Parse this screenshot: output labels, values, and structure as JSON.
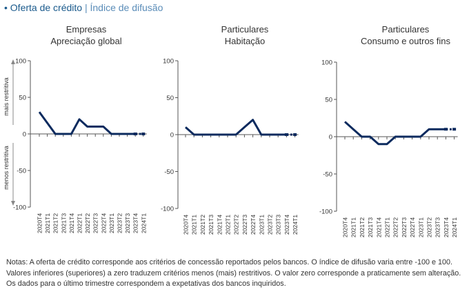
{
  "header": {
    "bullet": "•",
    "title": "Oferta de crédito",
    "separator": "|",
    "subtitle": "Índice de difusão"
  },
  "colors": {
    "header": "#1a5a8c",
    "series": "#0b2a5e",
    "axis": "#555555",
    "text": "#333333"
  },
  "y_axis_labels": {
    "upper": "mais restritiva",
    "lower": "menos restritiva"
  },
  "chart_data": [
    {
      "type": "line",
      "title": "Empresas",
      "subtitle": "Apreciação global",
      "ylim": [
        -100,
        100
      ],
      "yticks": [
        100,
        50,
        0,
        -50,
        -100
      ],
      "x": [
        "2020T4",
        "2021T1",
        "2021T2",
        "2021T3",
        "2021T4",
        "2022T1",
        "2022T2",
        "2022T3",
        "2022T4",
        "2023T1",
        "2023T2",
        "2023T3",
        "2023T4",
        "2024T1"
      ],
      "series": [
        {
          "values": [
            30,
            15,
            0,
            0,
            0,
            20,
            10,
            10,
            10,
            0,
            0,
            0,
            0,
            0
          ],
          "expected_from_index": 12
        }
      ]
    },
    {
      "type": "line",
      "title": "Particulares",
      "subtitle": "Habitação",
      "ylim": [
        -100,
        100
      ],
      "yticks": [
        100,
        50,
        0,
        -50,
        -100
      ],
      "x": [
        "2020T4",
        "2021T1",
        "2021T2",
        "2021T3",
        "2021T4",
        "2022T1",
        "2022T2",
        "2022T3",
        "2022T4",
        "2023T1",
        "2023T2",
        "2023T3",
        "2023T4",
        "2024T1"
      ],
      "series": [
        {
          "values": [
            10,
            0,
            0,
            0,
            0,
            0,
            0,
            10,
            20,
            0,
            0,
            0,
            0,
            0
          ],
          "expected_from_index": 12
        }
      ]
    },
    {
      "type": "line",
      "title": "Particulares",
      "subtitle": "Consumo e outros fins",
      "ylim": [
        -100,
        100
      ],
      "yticks": [
        100,
        50,
        0,
        -50,
        -100
      ],
      "x": [
        "2020T4",
        "2021T1",
        "2021T2",
        "2021T3",
        "2021T4",
        "2022T1",
        "2022T2",
        "2022T3",
        "2022T4",
        "2023T1",
        "2023T2",
        "2023T3",
        "2023T4",
        "2024T1"
      ],
      "series": [
        {
          "values": [
            20,
            10,
            0,
            0,
            -10,
            -10,
            0,
            0,
            0,
            0,
            10,
            10,
            10,
            10
          ],
          "expected_from_index": 12
        }
      ]
    }
  ],
  "notes": "Notas: A oferta de crédito corresponde aos critérios de concessão reportados pelos bancos. O índice de difusão varia entre -100 e 100. Valores inferiores (superiores) a zero traduzem critérios menos (mais) restritivos. O valor zero corresponde a praticamente sem alteração. Os dados para o último trimestre correspondem a expetativas dos bancos inquiridos."
}
